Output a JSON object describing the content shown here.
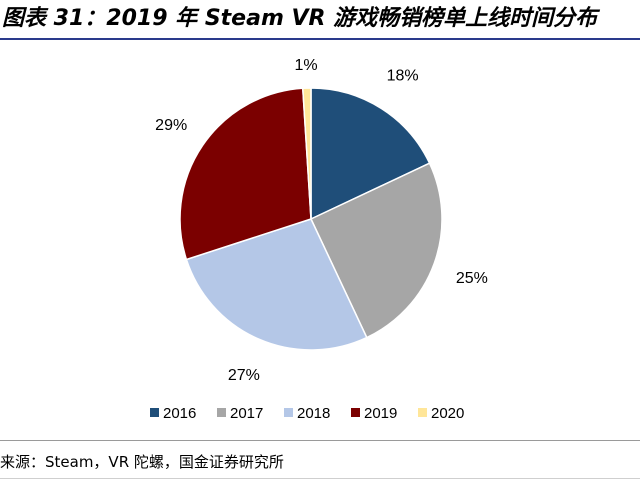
{
  "figure": {
    "title": "图表 31：2019 年 Steam VR 游戏畅销榜单上线时间分布",
    "source": "来源：Steam，VR 陀螺，国金证券研究所"
  },
  "chart_data": {
    "type": "pie",
    "title": "",
    "categories": [
      "2016",
      "2017",
      "2018",
      "2019",
      "2020"
    ],
    "values": [
      18,
      25,
      27,
      29,
      1
    ],
    "labels": [
      "18%",
      "25%",
      "27%",
      "29%",
      "1%"
    ],
    "colors": [
      "#1f4e79",
      "#a6a6a6",
      "#b4c7e7",
      "#7b0000",
      "#ffe699"
    ],
    "start_angle_deg": 0,
    "direction": "clockwise",
    "legend_position": "bottom",
    "unit": "%"
  }
}
